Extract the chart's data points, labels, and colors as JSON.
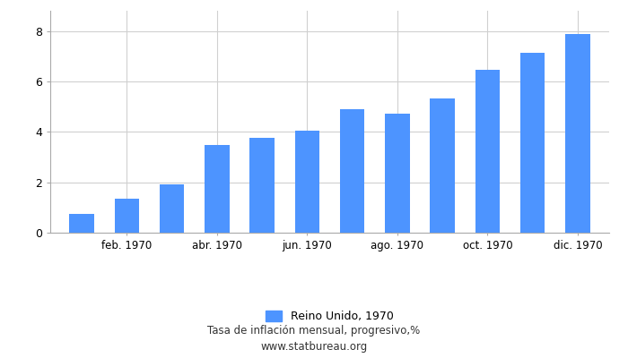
{
  "x_tick_labels": [
    "feb. 1970",
    "abr. 1970",
    "jun. 1970",
    "ago. 1970",
    "oct. 1970",
    "dic. 1970"
  ],
  "x_tick_positions": [
    1,
    3,
    5,
    7,
    9,
    11
  ],
  "values": [
    0.76,
    1.34,
    1.9,
    3.47,
    3.76,
    4.03,
    4.9,
    4.72,
    5.33,
    6.47,
    7.13,
    7.89
  ],
  "bar_color": "#4d94ff",
  "ylim": [
    0,
    8.8
  ],
  "yticks": [
    0,
    2,
    4,
    6,
    8
  ],
  "legend_label": "Reino Unido, 1970",
  "subtitle1": "Tasa de inflación mensual, progresivo,%",
  "subtitle2": "www.statbureau.org",
  "background_color": "#ffffff",
  "grid_color": "#d0d0d0",
  "bar_width": 0.55
}
